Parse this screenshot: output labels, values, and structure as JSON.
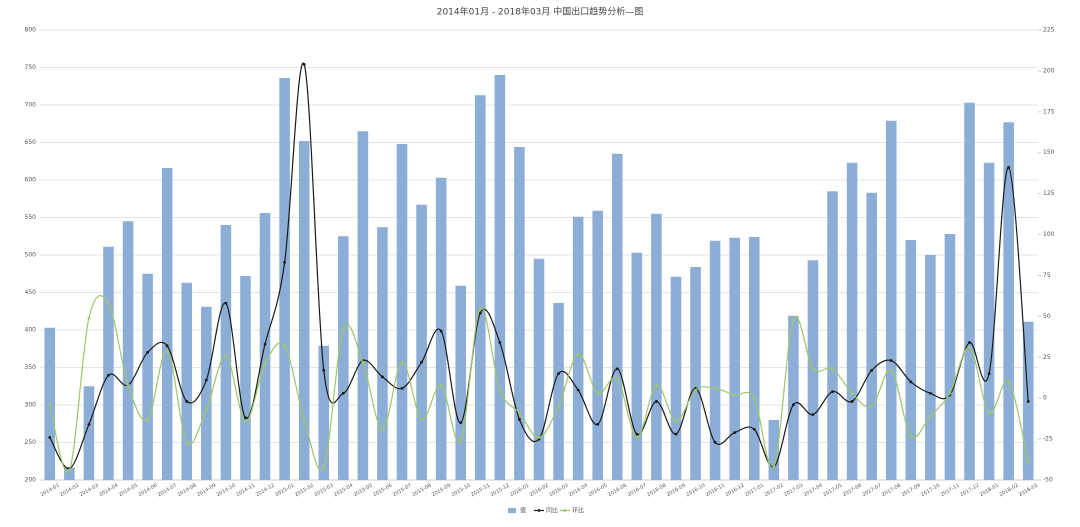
{
  "chart_data": {
    "type": "bar-line",
    "title": "2014年01月 - 2018年03月 中国出口趋势分析—图",
    "categories": [
      "2014-01",
      "2014-02",
      "2014-03",
      "2014-04",
      "2014-05",
      "2014-06",
      "2014-07",
      "2014-08",
      "2014-09",
      "2014-10",
      "2014-11",
      "2014-12",
      "2015-01",
      "2015-02",
      "2015-03",
      "2015-04",
      "2015-05",
      "2015-06",
      "2015-07",
      "2015-08",
      "2015-09",
      "2015-10",
      "2015-11",
      "2015-12",
      "2016-01",
      "2016-02",
      "2016-03",
      "2016-04",
      "2016-05",
      "2016-06",
      "2016-07",
      "2016-08",
      "2016-09",
      "2016-10",
      "2016-11",
      "2016-12",
      "2017-01",
      "2017-02",
      "2017-03",
      "2017-04",
      "2017-05",
      "2017-06",
      "2017-07",
      "2017-08",
      "2017-09",
      "2017-10",
      "2017-11",
      "2017-12",
      "2018-01",
      "2018-02",
      "2018-03"
    ],
    "series": [
      {
        "name": "值",
        "type": "bar",
        "color": "#8caed6",
        "values": [
          403,
          217,
          325,
          511,
          545,
          475,
          616,
          463,
          431,
          540,
          472,
          556,
          736,
          652,
          379,
          525,
          665,
          537,
          648,
          567,
          603,
          459,
          713,
          740,
          644,
          495,
          436,
          551,
          559,
          635,
          503,
          555,
          471,
          484,
          519,
          523,
          524,
          280,
          419,
          493,
          585,
          623,
          583,
          679,
          520,
          500,
          528,
          703,
          623,
          677,
          411
        ]
      },
      {
        "name": "同比",
        "type": "line",
        "axis": "y2",
        "color": "#1a1a1a",
        "values": [
          -24,
          -43,
          -16,
          14,
          8,
          28,
          32,
          -2,
          11,
          58,
          -12,
          33,
          83,
          204,
          17,
          3,
          23,
          13,
          6,
          22,
          41,
          -15,
          52,
          34,
          -13,
          -25,
          15,
          5,
          -16,
          18,
          -22,
          -2,
          -22,
          6,
          -27,
          -21,
          -19,
          -42,
          -4,
          -10,
          4,
          -2,
          17,
          23,
          10,
          3,
          2,
          34,
          15,
          141,
          -2
        ]
      },
      {
        "name": "环比",
        "type": "line",
        "axis": "y2",
        "color": "#9dc76a",
        "values": [
          -4,
          -44,
          49,
          58,
          8,
          -13,
          29,
          -27,
          -7,
          26,
          -14,
          21,
          32,
          -13,
          -42,
          42,
          22,
          -19,
          22,
          -13,
          8,
          -26,
          55,
          5,
          -9,
          -24,
          -5,
          27,
          3,
          12,
          -24,
          8,
          -14,
          5,
          6,
          2,
          0,
          -42,
          48,
          18,
          18,
          3,
          -5,
          17,
          -23,
          -11,
          3,
          31,
          -9,
          10,
          -39
        ]
      }
    ],
    "ylim": [
      200,
      800
    ],
    "yticks": [
      200,
      250,
      300,
      350,
      400,
      450,
      500,
      550,
      600,
      650,
      700,
      750,
      800
    ],
    "y2lim": [
      -50,
      225
    ],
    "y2ticks": [
      -50,
      -25,
      0,
      25,
      50,
      75,
      100,
      125,
      150,
      175,
      200,
      225
    ],
    "grid": true
  }
}
